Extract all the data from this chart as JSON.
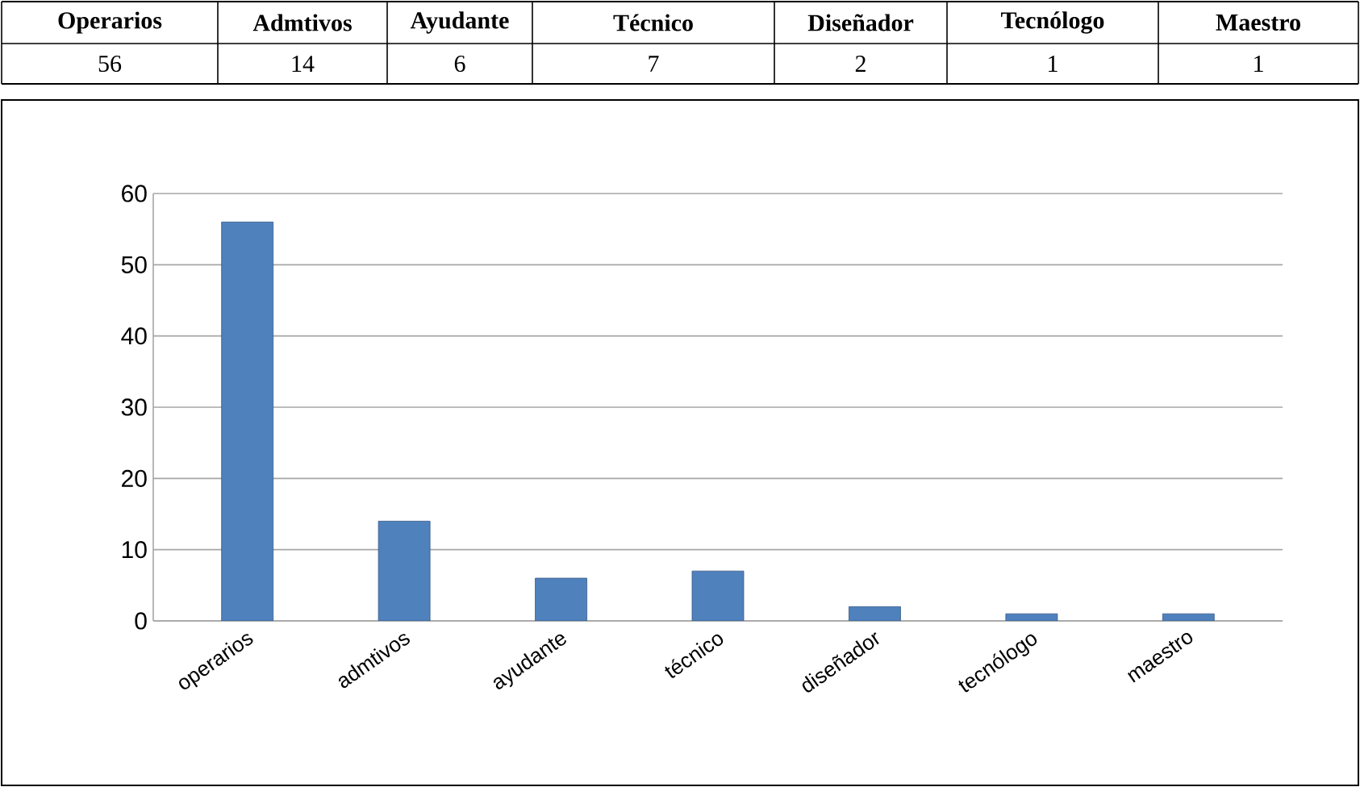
{
  "chart_data": [
    {
      "type": "other",
      "categories": [
        "Operarios",
        "Admtivos",
        "Ayudante",
        "Técnico",
        "Diseñador",
        "Tecnólogo",
        "Maestro"
      ],
      "values": [
        56,
        14,
        6,
        7,
        2,
        1,
        1
      ],
      "value_labels": [
        "56",
        "14",
        "6",
        "7",
        "2",
        "1",
        "1"
      ]
    },
    {
      "type": "bar",
      "categories": [
        "operarios",
        "admtivos",
        "ayudante",
        "técnico",
        "diseñador",
        "tecnólogo",
        "maestro"
      ],
      "values": [
        56,
        14,
        6,
        7,
        2,
        1,
        1
      ],
      "color": "#4f81bd",
      "ylim": [
        0,
        60
      ],
      "yticks": [
        0,
        10,
        20,
        30,
        40,
        50,
        60
      ],
      "grid": "y"
    }
  ]
}
